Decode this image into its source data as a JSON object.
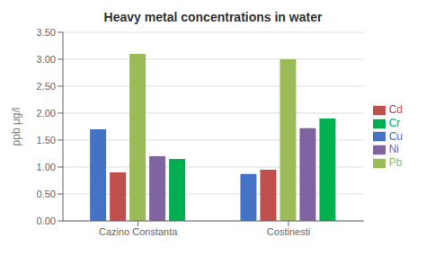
{
  "chart_data": {
    "type": "bar",
    "title": "Heavy metal concentrations in water",
    "ylabel": "ppb μg/l",
    "categories": [
      "Cazino Constanta",
      "Costinesti"
    ],
    "series": [
      {
        "name": "Cu",
        "color": "#4472C4",
        "values": [
          1.7,
          0.87
        ]
      },
      {
        "name": "Cd",
        "color": "#C0504D",
        "values": [
          0.9,
          0.95
        ]
      },
      {
        "name": "Pb",
        "color": "#9BBB59",
        "values": [
          3.1,
          3.0
        ]
      },
      {
        "name": "Ni",
        "color": "#8064A2",
        "values": [
          1.2,
          1.72
        ]
      },
      {
        "name": "Cr",
        "color": "#00B050",
        "values": [
          1.15,
          1.9
        ]
      }
    ],
    "ylim": [
      0.0,
      3.5
    ],
    "yticks": [
      {
        "value": 0.0,
        "label": "0.00"
      },
      {
        "value": 0.5,
        "label": "0.50"
      },
      {
        "value": 1.0,
        "label": "1.00"
      },
      {
        "value": 1.5,
        "label": "1.50"
      },
      {
        "value": 2.0,
        "label": "2.00"
      },
      {
        "value": 2.5,
        "label": "2.50"
      },
      {
        "value": 3.0,
        "label": "3.00"
      },
      {
        "value": 3.5,
        "label": "3.50"
      }
    ],
    "grid": true,
    "legend": "right"
  }
}
